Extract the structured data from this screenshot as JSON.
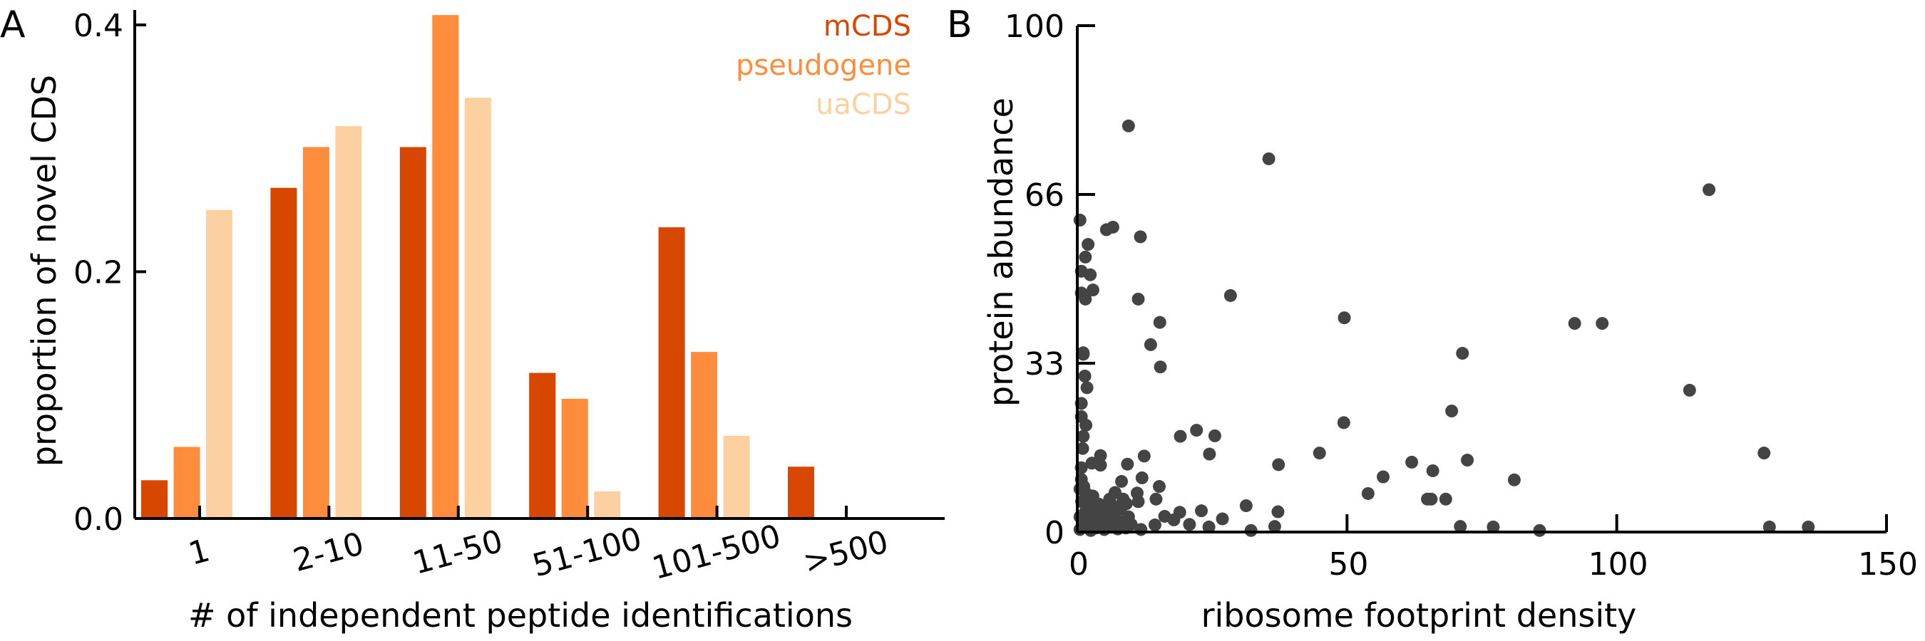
{
  "chart_data": [
    {
      "panel": "A",
      "type": "bar",
      "xlabel": "# of independent peptide identifications",
      "ylabel": "proportion of novel CDS",
      "ylim": [
        0.0,
        0.4
      ],
      "yticks": [
        0.0,
        0.2,
        0.4
      ],
      "ytick_labels": [
        "0.0",
        "0.2",
        "0.4"
      ],
      "categories": [
        "1",
        "2-10",
        "11-50",
        "51-100",
        "101-500",
        ">500"
      ],
      "legend_placement": "top-right",
      "series": [
        {
          "name": "mCDS",
          "color": "#d84701",
          "values": [
            0.031,
            0.268,
            0.301,
            0.118,
            0.236,
            0.042
          ]
        },
        {
          "name": "pseudogene",
          "color": "#fd8d3c",
          "values": [
            0.058,
            0.301,
            0.408,
            0.097,
            0.135,
            0.0
          ]
        },
        {
          "name": "uaCDS",
          "color": "#fdd0a2",
          "values": [
            0.25,
            0.318,
            0.341,
            0.022,
            0.067,
            0.0
          ]
        }
      ],
      "grid": false
    },
    {
      "panel": "B",
      "type": "scatter",
      "xlabel": "ribosome footprint density",
      "ylabel": "protein abundance",
      "xlim": [
        0,
        150
      ],
      "ylim": [
        0,
        100
      ],
      "xticks": [
        0,
        50,
        100,
        150
      ],
      "xtick_labels": [
        "0",
        "50",
        "100",
        "150"
      ],
      "yticks": [
        0,
        33.33,
        66.67,
        100
      ],
      "ytick_labels": [
        "0",
        "33",
        "66",
        "100"
      ],
      "point_color": "#444444",
      "grid": false,
      "points": [
        [
          9.5,
          80.2
        ],
        [
          35.5,
          73.7
        ],
        [
          117.1,
          67.6
        ],
        [
          0.5,
          61.6
        ],
        [
          5.4,
          59.7
        ],
        [
          6.6,
          60.2
        ],
        [
          11.7,
          58.3
        ],
        [
          2.0,
          56.8
        ],
        [
          1.5,
          54.3
        ],
        [
          0.75,
          51.5
        ],
        [
          2.4,
          50.8
        ],
        [
          2.9,
          47.8
        ],
        [
          0.75,
          47.2
        ],
        [
          1.5,
          46.0
        ],
        [
          11.3,
          46.0
        ],
        [
          28.4,
          46.7
        ],
        [
          49.5,
          42.3
        ],
        [
          92.2,
          41.2
        ],
        [
          97.3,
          41.2
        ],
        [
          15.3,
          41.4
        ],
        [
          13.6,
          37.0
        ],
        [
          1.1,
          35.4
        ],
        [
          71.4,
          35.3
        ],
        [
          15.4,
          32.6
        ],
        [
          1.1,
          35.1
        ],
        [
          1.4,
          30.8
        ],
        [
          1.8,
          28.5
        ],
        [
          113.5,
          28.0
        ],
        [
          0.75,
          25.4
        ],
        [
          69.4,
          23.9
        ],
        [
          0.75,
          22.8
        ],
        [
          49.4,
          21.6
        ],
        [
          1.6,
          21.1
        ],
        [
          22.1,
          20.1
        ],
        [
          19.1,
          18.9
        ],
        [
          25.5,
          19.0
        ],
        [
          1.1,
          18.9
        ],
        [
          1.0,
          16.5
        ],
        [
          127.3,
          15.6
        ],
        [
          44.9,
          15.6
        ],
        [
          24.5,
          15.4
        ],
        [
          12.4,
          15.0
        ],
        [
          4.3,
          15.1
        ],
        [
          72.3,
          14.2
        ],
        [
          62.0,
          13.8
        ],
        [
          2.7,
          13.6
        ],
        [
          9.3,
          13.4
        ],
        [
          37.3,
          13.3
        ],
        [
          4.3,
          13.2
        ],
        [
          0.75,
          12.7
        ],
        [
          65.9,
          12.1
        ],
        [
          56.7,
          10.9
        ],
        [
          12.0,
          10.7
        ],
        [
          0.75,
          10.4
        ],
        [
          81.0,
          10.3
        ],
        [
          8.2,
          10.0
        ],
        [
          15.2,
          9.0
        ],
        [
          1.2,
          9.0
        ],
        [
          7.0,
          7.8
        ],
        [
          11.1,
          7.7
        ],
        [
          53.9,
          7.6
        ],
        [
          2.9,
          7.1
        ],
        [
          14.6,
          6.5
        ],
        [
          64.9,
          6.5
        ],
        [
          65.6,
          6.5
        ],
        [
          68.3,
          6.5
        ],
        [
          11.3,
          6.0
        ],
        [
          3.4,
          5.7
        ],
        [
          9.1,
          5.6
        ],
        [
          31.3,
          5.2
        ],
        [
          5.6,
          5.0
        ],
        [
          23.0,
          4.2
        ],
        [
          37.2,
          4.0
        ],
        [
          19.0,
          3.9
        ],
        [
          2.5,
          3.6
        ],
        [
          16.2,
          3.1
        ],
        [
          26.9,
          2.6
        ],
        [
          17.9,
          2.4
        ],
        [
          20.8,
          1.5
        ],
        [
          14.4,
          1.4
        ],
        [
          71.0,
          1.1
        ],
        [
          36.6,
          1.1
        ],
        [
          24.4,
          1.0
        ],
        [
          77.1,
          1.0
        ],
        [
          128.3,
          1.0
        ],
        [
          135.5,
          1.0
        ],
        [
          11.8,
          0.5
        ],
        [
          85.7,
          0.3
        ],
        [
          32.2,
          0.3
        ],
        [
          0.5,
          0.5
        ],
        [
          1.0,
          2.0
        ],
        [
          1.5,
          4.0
        ],
        [
          2.0,
          1.0
        ],
        [
          3.0,
          2.5
        ],
        [
          3.5,
          0.8
        ],
        [
          4.0,
          3.5
        ],
        [
          4.5,
          1.5
        ],
        [
          5.0,
          0.5
        ],
        [
          5.5,
          2.5
        ],
        [
          6.0,
          4.0
        ],
        [
          6.5,
          1.2
        ],
        [
          7.0,
          2.8
        ],
        [
          7.5,
          0.6
        ],
        [
          8.0,
          4.5
        ],
        [
          8.5,
          2.0
        ],
        [
          9.0,
          0.8
        ],
        [
          9.5,
          3.0
        ],
        [
          10.0,
          1.5
        ],
        [
          0.8,
          6.0
        ],
        [
          1.8,
          7.5
        ],
        [
          0.5,
          8.5
        ],
        [
          2.2,
          5.0
        ],
        [
          3.0,
          6.0
        ],
        [
          6.0,
          6.5
        ],
        [
          7.5,
          5.0
        ],
        [
          8.5,
          6.5
        ],
        [
          0.5,
          3.0
        ],
        [
          2.5,
          0.3
        ],
        [
          4.0,
          5.5
        ]
      ]
    }
  ],
  "panels": {
    "a_label": "A",
    "b_label": "B"
  }
}
